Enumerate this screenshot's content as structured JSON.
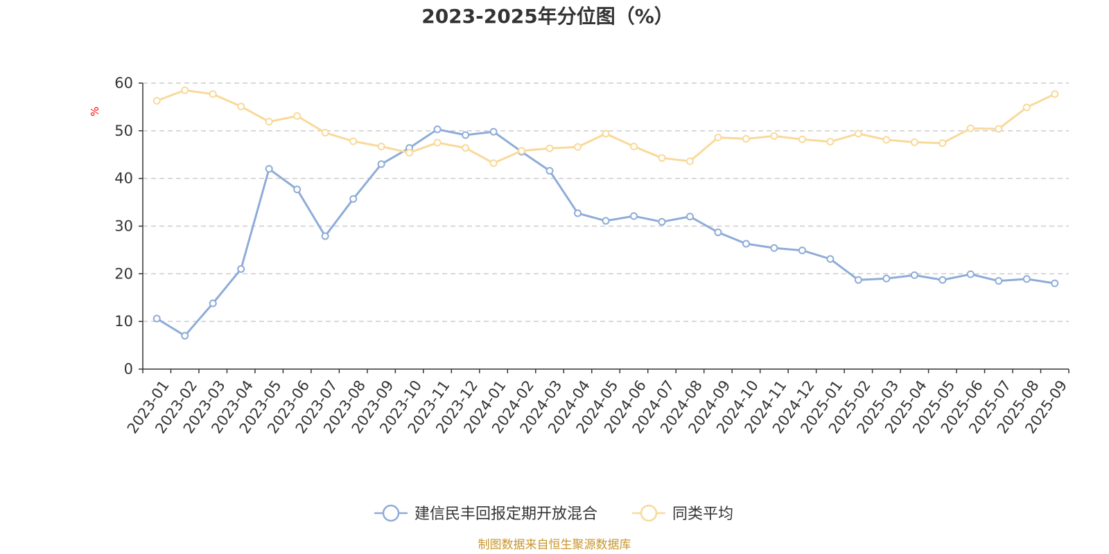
{
  "chart_data": {
    "type": "line",
    "title": "2023-2025年分位图（%）",
    "ylabel": "%",
    "ylim": [
      0,
      60
    ],
    "yticks": [
      0,
      10,
      20,
      30,
      40,
      50,
      60
    ],
    "grid": true,
    "legend_position": "bottom",
    "categories": [
      "2023-01",
      "2023-02",
      "2023-03",
      "2023-04",
      "2023-05",
      "2023-06",
      "2023-07",
      "2023-08",
      "2023-09",
      "2023-10",
      "2023-11",
      "2023-12",
      "2024-01",
      "2024-02",
      "2024-03",
      "2024-04",
      "2024-05",
      "2024-06",
      "2024-07",
      "2024-08",
      "2024-09",
      "2024-10",
      "2024-11",
      "2024-12",
      "2025-01",
      "2025-02",
      "2025-03",
      "2025-04",
      "2025-05",
      "2025-06",
      "2025-07",
      "2025-08",
      "2025-09"
    ],
    "series": [
      {
        "name": "建信民丰回报定期开放混合",
        "color": "#8eacd8",
        "values": [
          10.6,
          7.0,
          13.8,
          21.0,
          42.0,
          37.7,
          27.9,
          35.7,
          43.0,
          46.4,
          50.3,
          49.1,
          49.8,
          45.6,
          41.6,
          32.7,
          31.1,
          32.1,
          30.9,
          32.0,
          28.7,
          26.3,
          25.4,
          24.9,
          23.1,
          18.7,
          19.0,
          19.7,
          18.7,
          19.9,
          18.5,
          18.9,
          18.0
        ]
      },
      {
        "name": "同类平均",
        "color": "#f9d99a",
        "values": [
          56.3,
          58.5,
          57.7,
          55.1,
          51.9,
          53.1,
          49.6,
          47.8,
          46.7,
          45.4,
          47.5,
          46.4,
          43.2,
          45.8,
          46.3,
          46.6,
          49.4,
          46.7,
          44.3,
          43.6,
          48.6,
          48.3,
          48.9,
          48.2,
          47.7,
          49.4,
          48.1,
          47.6,
          47.4,
          50.5,
          50.4,
          54.9,
          57.7
        ]
      }
    ]
  },
  "source_text": "制图数据来自恒生聚源数据库",
  "colors": {
    "axis": "#333333",
    "grid": "#cccccc",
    "unit": "#ff0000",
    "source": "#c8962e"
  }
}
